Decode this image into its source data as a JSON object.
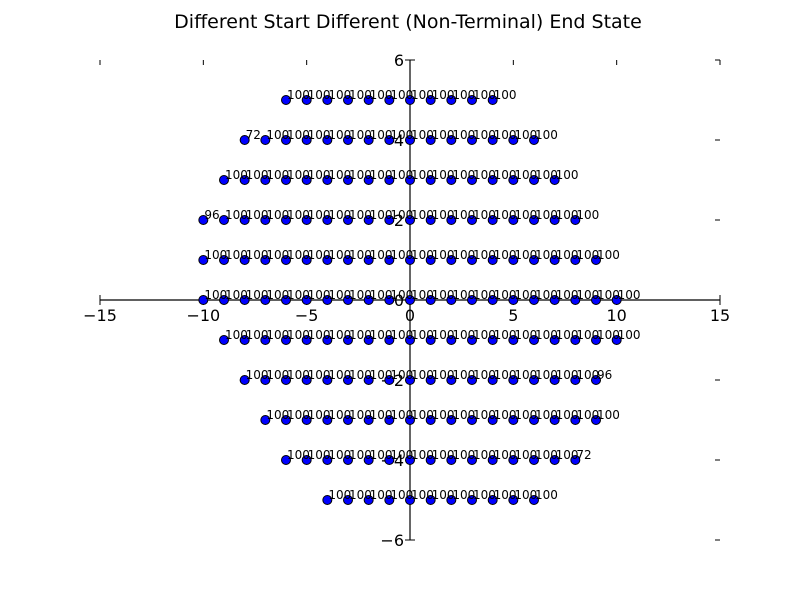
{
  "chart_data": {
    "type": "scatter",
    "title": "Different Start Different (Non-Terminal) End State",
    "xlabel": "",
    "ylabel": "",
    "xlim": [
      -15,
      15
    ],
    "ylim": [
      -6,
      6
    ],
    "x_ticks": [
      -15,
      -10,
      -5,
      0,
      5,
      10,
      15
    ],
    "y_ticks": [
      6,
      4,
      2,
      0,
      -2,
      -4,
      -6
    ],
    "y_tick_labels": [
      "6",
      "4",
      "2",
      "0",
      "−2",
      "−4",
      "−6"
    ],
    "x_tick_labels": [
      "−15",
      "−10",
      "−5",
      "0",
      "5",
      "10",
      "15"
    ],
    "grid": false,
    "point_color": "#0000ff",
    "rows": [
      {
        "y": 5,
        "x_start": -6,
        "values": [
          100,
          100,
          100,
          100,
          100,
          100,
          100,
          100,
          100,
          100,
          100
        ]
      },
      {
        "y": 4,
        "x_start": -8,
        "values": [
          72,
          100,
          100,
          100,
          100,
          100,
          100,
          100,
          100,
          100,
          100,
          100,
          100,
          100,
          100
        ]
      },
      {
        "y": 3,
        "x_start": -9,
        "values": [
          100,
          100,
          100,
          100,
          100,
          100,
          100,
          100,
          100,
          100,
          100,
          100,
          100,
          100,
          100,
          100,
          100
        ]
      },
      {
        "y": 2,
        "x_start": -10,
        "values": [
          96,
          100,
          100,
          100,
          100,
          100,
          100,
          100,
          100,
          100,
          100,
          100,
          100,
          100,
          100,
          100,
          100,
          100,
          100
        ]
      },
      {
        "y": 1,
        "x_start": -10,
        "values": [
          100,
          100,
          100,
          100,
          100,
          100,
          100,
          100,
          100,
          100,
          100,
          100,
          100,
          100,
          100,
          100,
          100,
          100,
          100,
          100
        ]
      },
      {
        "y": 0,
        "x_start": -10,
        "values": [
          100,
          100,
          100,
          100,
          100,
          100,
          100,
          100,
          100,
          100,
          100,
          100,
          100,
          100,
          100,
          100,
          100,
          100,
          100,
          100,
          100
        ]
      },
      {
        "y": -1,
        "x_start": -9,
        "values": [
          100,
          100,
          100,
          100,
          100,
          100,
          100,
          100,
          100,
          100,
          100,
          100,
          100,
          100,
          100,
          100,
          100,
          100,
          100,
          100
        ]
      },
      {
        "y": -2,
        "x_start": -8,
        "values": [
          100,
          100,
          100,
          100,
          100,
          100,
          100,
          100,
          100,
          100,
          100,
          100,
          100,
          100,
          100,
          100,
          100,
          96
        ]
      },
      {
        "y": -3,
        "x_start": -7,
        "values": [
          100,
          100,
          100,
          100,
          100,
          100,
          100,
          100,
          100,
          100,
          100,
          100,
          100,
          100,
          100,
          100,
          100
        ]
      },
      {
        "y": -4,
        "x_start": -6,
        "values": [
          100,
          100,
          100,
          100,
          100,
          100,
          100,
          100,
          100,
          100,
          100,
          100,
          100,
          100,
          72
        ]
      },
      {
        "y": -5,
        "x_start": -4,
        "values": [
          100,
          100,
          100,
          100,
          100,
          100,
          100,
          100,
          100,
          100,
          100
        ]
      }
    ]
  }
}
